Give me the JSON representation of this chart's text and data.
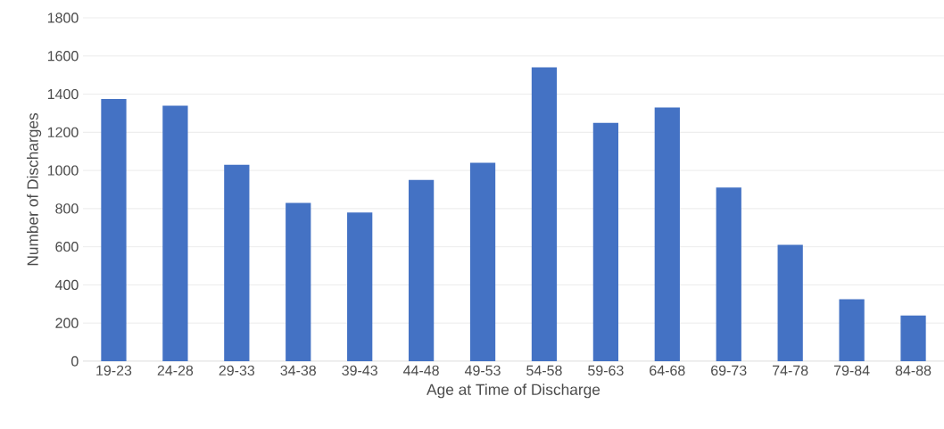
{
  "chart_data": {
    "type": "bar",
    "xlabel": "Age at Time of Discharge",
    "ylabel": "Number of Discharges",
    "categories": [
      "19-23",
      "24-28",
      "29-33",
      "34-38",
      "39-43",
      "44-48",
      "49-53",
      "54-58",
      "59-63",
      "64-68",
      "69-73",
      "74-78",
      "79-84",
      "84-88"
    ],
    "values": [
      1375,
      1340,
      1030,
      830,
      780,
      950,
      1040,
      1540,
      1250,
      1330,
      910,
      610,
      325,
      240
    ],
    "color": "#4472c4",
    "ylim": [
      0,
      1800
    ],
    "yticks": [
      0,
      200,
      400,
      600,
      800,
      1000,
      1200,
      1400,
      1600,
      1800
    ],
    "grid": "y"
  }
}
